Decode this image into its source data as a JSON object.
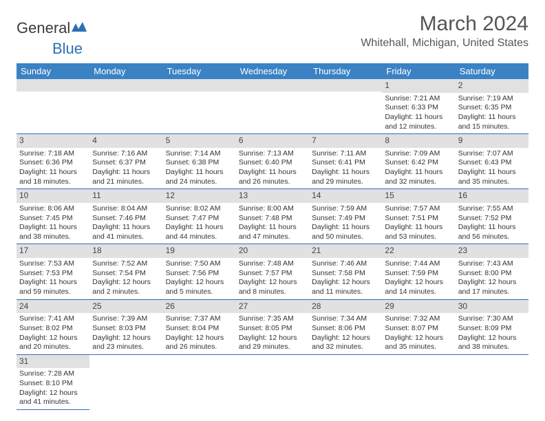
{
  "logo": {
    "word1": "General",
    "word2": "Blue"
  },
  "header": {
    "month_title": "March 2024",
    "location": "Whitehall, Michigan, United States"
  },
  "colors": {
    "header_bg": "#3a82c4",
    "header_text": "#ffffff",
    "row_divider": "#2d6fb5",
    "daynum_bg": "#e1e1e1",
    "logo_blue": "#2d6fb5",
    "body_text": "#333333"
  },
  "day_labels": [
    "Sunday",
    "Monday",
    "Tuesday",
    "Wednesday",
    "Thursday",
    "Friday",
    "Saturday"
  ],
  "weeks": [
    [
      null,
      null,
      null,
      null,
      null,
      {
        "n": "1",
        "sr": "7:21 AM",
        "ss": "6:33 PM",
        "dl": "11 hours and 12 minutes."
      },
      {
        "n": "2",
        "sr": "7:19 AM",
        "ss": "6:35 PM",
        "dl": "11 hours and 15 minutes."
      }
    ],
    [
      {
        "n": "3",
        "sr": "7:18 AM",
        "ss": "6:36 PM",
        "dl": "11 hours and 18 minutes."
      },
      {
        "n": "4",
        "sr": "7:16 AM",
        "ss": "6:37 PM",
        "dl": "11 hours and 21 minutes."
      },
      {
        "n": "5",
        "sr": "7:14 AM",
        "ss": "6:38 PM",
        "dl": "11 hours and 24 minutes."
      },
      {
        "n": "6",
        "sr": "7:13 AM",
        "ss": "6:40 PM",
        "dl": "11 hours and 26 minutes."
      },
      {
        "n": "7",
        "sr": "7:11 AM",
        "ss": "6:41 PM",
        "dl": "11 hours and 29 minutes."
      },
      {
        "n": "8",
        "sr": "7:09 AM",
        "ss": "6:42 PM",
        "dl": "11 hours and 32 minutes."
      },
      {
        "n": "9",
        "sr": "7:07 AM",
        "ss": "6:43 PM",
        "dl": "11 hours and 35 minutes."
      }
    ],
    [
      {
        "n": "10",
        "sr": "8:06 AM",
        "ss": "7:45 PM",
        "dl": "11 hours and 38 minutes."
      },
      {
        "n": "11",
        "sr": "8:04 AM",
        "ss": "7:46 PM",
        "dl": "11 hours and 41 minutes."
      },
      {
        "n": "12",
        "sr": "8:02 AM",
        "ss": "7:47 PM",
        "dl": "11 hours and 44 minutes."
      },
      {
        "n": "13",
        "sr": "8:00 AM",
        "ss": "7:48 PM",
        "dl": "11 hours and 47 minutes."
      },
      {
        "n": "14",
        "sr": "7:59 AM",
        "ss": "7:49 PM",
        "dl": "11 hours and 50 minutes."
      },
      {
        "n": "15",
        "sr": "7:57 AM",
        "ss": "7:51 PM",
        "dl": "11 hours and 53 minutes."
      },
      {
        "n": "16",
        "sr": "7:55 AM",
        "ss": "7:52 PM",
        "dl": "11 hours and 56 minutes."
      }
    ],
    [
      {
        "n": "17",
        "sr": "7:53 AM",
        "ss": "7:53 PM",
        "dl": "11 hours and 59 minutes."
      },
      {
        "n": "18",
        "sr": "7:52 AM",
        "ss": "7:54 PM",
        "dl": "12 hours and 2 minutes."
      },
      {
        "n": "19",
        "sr": "7:50 AM",
        "ss": "7:56 PM",
        "dl": "12 hours and 5 minutes."
      },
      {
        "n": "20",
        "sr": "7:48 AM",
        "ss": "7:57 PM",
        "dl": "12 hours and 8 minutes."
      },
      {
        "n": "21",
        "sr": "7:46 AM",
        "ss": "7:58 PM",
        "dl": "12 hours and 11 minutes."
      },
      {
        "n": "22",
        "sr": "7:44 AM",
        "ss": "7:59 PM",
        "dl": "12 hours and 14 minutes."
      },
      {
        "n": "23",
        "sr": "7:43 AM",
        "ss": "8:00 PM",
        "dl": "12 hours and 17 minutes."
      }
    ],
    [
      {
        "n": "24",
        "sr": "7:41 AM",
        "ss": "8:02 PM",
        "dl": "12 hours and 20 minutes."
      },
      {
        "n": "25",
        "sr": "7:39 AM",
        "ss": "8:03 PM",
        "dl": "12 hours and 23 minutes."
      },
      {
        "n": "26",
        "sr": "7:37 AM",
        "ss": "8:04 PM",
        "dl": "12 hours and 26 minutes."
      },
      {
        "n": "27",
        "sr": "7:35 AM",
        "ss": "8:05 PM",
        "dl": "12 hours and 29 minutes."
      },
      {
        "n": "28",
        "sr": "7:34 AM",
        "ss": "8:06 PM",
        "dl": "12 hours and 32 minutes."
      },
      {
        "n": "29",
        "sr": "7:32 AM",
        "ss": "8:07 PM",
        "dl": "12 hours and 35 minutes."
      },
      {
        "n": "30",
        "sr": "7:30 AM",
        "ss": "8:09 PM",
        "dl": "12 hours and 38 minutes."
      }
    ],
    [
      {
        "n": "31",
        "sr": "7:28 AM",
        "ss": "8:10 PM",
        "dl": "12 hours and 41 minutes."
      },
      null,
      null,
      null,
      null,
      null,
      null
    ]
  ],
  "labels": {
    "sunrise_prefix": "Sunrise: ",
    "sunset_prefix": "Sunset: ",
    "daylight_prefix": "Daylight: "
  }
}
